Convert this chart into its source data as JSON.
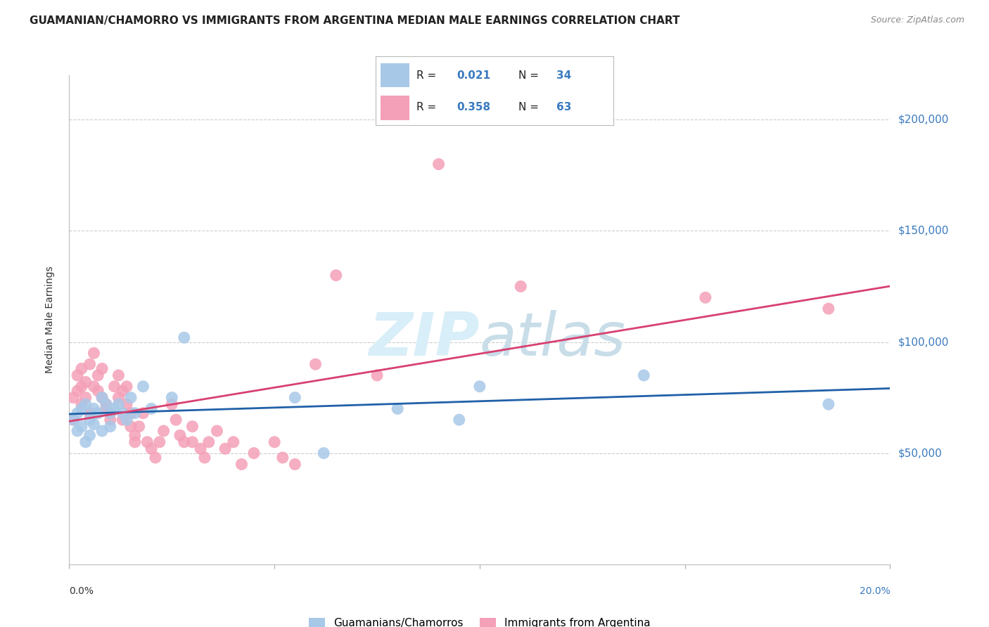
{
  "title": "GUAMANIAN/CHAMORRO VS IMMIGRANTS FROM ARGENTINA MEDIAN MALE EARNINGS CORRELATION CHART",
  "source": "Source: ZipAtlas.com",
  "ylabel": "Median Male Earnings",
  "xlim": [
    0.0,
    0.2
  ],
  "ylim": [
    0,
    220000
  ],
  "yticks": [
    50000,
    100000,
    150000,
    200000
  ],
  "ytick_labels": [
    "$50,000",
    "$100,000",
    "$150,000",
    "$200,000"
  ],
  "color_blue": "#a8c8e8",
  "color_pink": "#f4a0b8",
  "trendline_blue": "#2060a8",
  "trendline_pink": "#d84070",
  "background": "#ffffff",
  "blue_x": [
    0.001,
    0.002,
    0.002,
    0.003,
    0.003,
    0.004,
    0.004,
    0.005,
    0.005,
    0.006,
    0.006,
    0.007,
    0.008,
    0.008,
    0.009,
    0.01,
    0.01,
    0.011,
    0.012,
    0.013,
    0.014,
    0.015,
    0.016,
    0.018,
    0.02,
    0.025,
    0.028,
    0.055,
    0.062,
    0.08,
    0.095,
    0.1,
    0.14,
    0.185
  ],
  "blue_y": [
    65000,
    60000,
    68000,
    62000,
    70000,
    55000,
    72000,
    65000,
    58000,
    70000,
    63000,
    68000,
    60000,
    75000,
    72000,
    68000,
    62000,
    70000,
    72000,
    68000,
    65000,
    75000,
    68000,
    80000,
    70000,
    75000,
    102000,
    75000,
    50000,
    70000,
    65000,
    80000,
    85000,
    72000
  ],
  "pink_x": [
    0.001,
    0.001,
    0.002,
    0.002,
    0.003,
    0.003,
    0.003,
    0.004,
    0.004,
    0.005,
    0.005,
    0.006,
    0.006,
    0.007,
    0.007,
    0.008,
    0.008,
    0.009,
    0.009,
    0.01,
    0.01,
    0.011,
    0.012,
    0.012,
    0.013,
    0.013,
    0.014,
    0.014,
    0.015,
    0.015,
    0.016,
    0.016,
    0.017,
    0.018,
    0.019,
    0.02,
    0.021,
    0.022,
    0.023,
    0.025,
    0.026,
    0.027,
    0.028,
    0.03,
    0.03,
    0.032,
    0.033,
    0.034,
    0.036,
    0.038,
    0.04,
    0.042,
    0.045,
    0.05,
    0.052,
    0.055,
    0.06,
    0.065,
    0.075,
    0.09,
    0.11,
    0.155,
    0.185
  ],
  "pink_y": [
    65000,
    75000,
    78000,
    85000,
    72000,
    80000,
    88000,
    75000,
    82000,
    68000,
    90000,
    80000,
    95000,
    85000,
    78000,
    88000,
    75000,
    70000,
    72000,
    65000,
    68000,
    80000,
    75000,
    85000,
    78000,
    65000,
    72000,
    80000,
    68000,
    62000,
    55000,
    58000,
    62000,
    68000,
    55000,
    52000,
    48000,
    55000,
    60000,
    72000,
    65000,
    58000,
    55000,
    62000,
    55000,
    52000,
    48000,
    55000,
    60000,
    52000,
    55000,
    45000,
    50000,
    55000,
    48000,
    45000,
    90000,
    130000,
    85000,
    180000,
    125000,
    120000,
    115000
  ]
}
